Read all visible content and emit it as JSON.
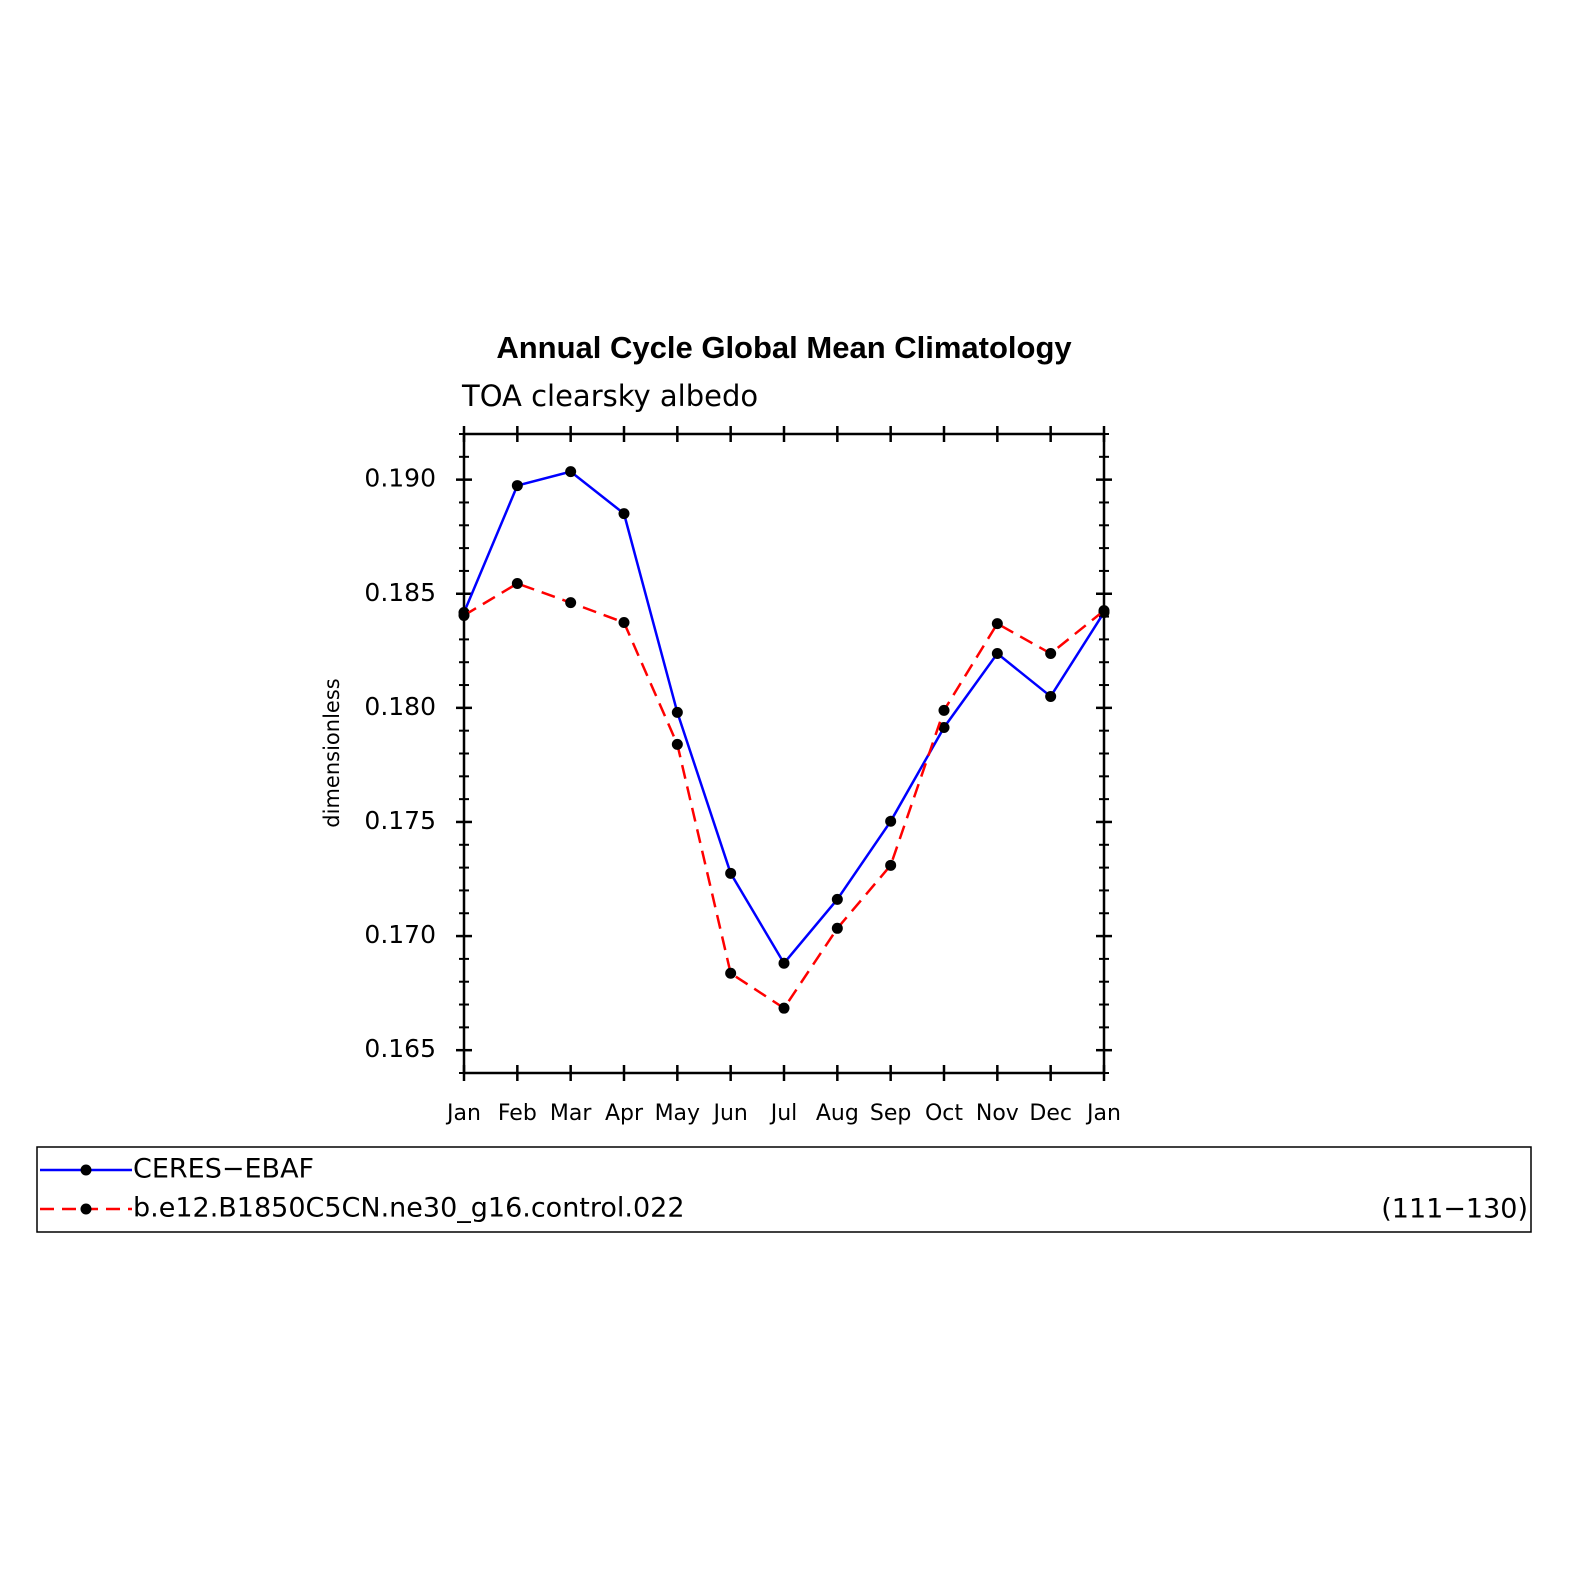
{
  "chart_data": {
    "type": "line",
    "title": "Annual Cycle Global Mean Climatology",
    "subtitle": "TOA clearsky albedo",
    "y_label": "dimensionless",
    "annotation": "(111−130)",
    "categories": [
      "Jan",
      "Feb",
      "Mar",
      "Apr",
      "May",
      "Jun",
      "Jul",
      "Aug",
      "Sep",
      "Oct",
      "Nov",
      "Dec",
      "Jan"
    ],
    "series": [
      {
        "name": "CERES−EBAF",
        "color": "#0000ff",
        "linestyle": "solid",
        "values": [
          0.18418,
          0.18974,
          0.19035,
          0.18851,
          0.1798,
          0.17275,
          0.16881,
          0.17161,
          0.17503,
          0.17914,
          0.18238,
          0.1805,
          0.18418
        ]
      },
      {
        "name": "b.e12.B1850C5CN.ne30_g16.control.022",
        "color": "#ff0000",
        "linestyle": "dashed",
        "values": [
          0.18405,
          0.18545,
          0.18461,
          0.18374,
          0.1784,
          0.16837,
          0.16684,
          0.17034,
          0.1731,
          0.17989,
          0.18369,
          0.18238,
          0.18426
        ]
      }
    ],
    "marker_color": "#000000",
    "ylim": [
      0.164,
      0.192
    ],
    "yticks": [
      0.165,
      {
        "value": 0.17,
        "label": "0.170"
      },
      0.175,
      {
        "value": 0.18,
        "label": "0.180"
      },
      0.185,
      {
        "value": 0.19,
        "label": "0.190"
      }
    ],
    "yminorticks": [
      0.164,
      0.166,
      0.167,
      0.168,
      0.169,
      0.171,
      0.172,
      0.173,
      0.174,
      0.176,
      0.177,
      0.178,
      0.179,
      0.181,
      0.182,
      0.183,
      0.184,
      0.186,
      0.187,
      0.188,
      0.189,
      0.191,
      0.192
    ],
    "grid": false
  }
}
